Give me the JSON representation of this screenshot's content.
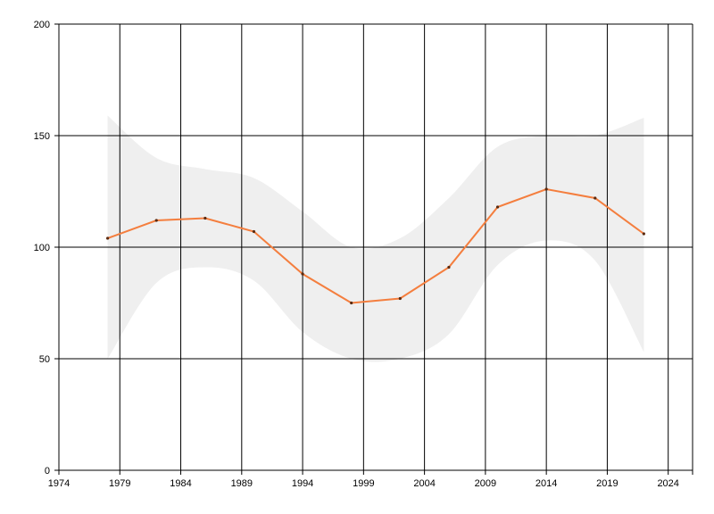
{
  "chart_data": {
    "type": "line",
    "title": "",
    "xlabel": "",
    "ylabel": "",
    "xlim": [
      1974,
      2026
    ],
    "ylim": [
      0,
      200
    ],
    "x_ticks": [
      "1974",
      "1979",
      "1984",
      "1989",
      "1994",
      "1999",
      "2004",
      "2009",
      "2014",
      "2019",
      "2024"
    ],
    "y_ticks": [
      "0",
      "50",
      "100",
      "150",
      "200"
    ],
    "grid": true,
    "series": [
      {
        "x": [
          1978,
          1982,
          1986,
          1990,
          1994,
          1998,
          2002,
          2006,
          2010,
          2014,
          2018,
          2022
        ],
        "values": [
          104,
          112,
          113,
          107,
          88,
          75,
          77,
          91,
          118,
          126,
          122,
          106
        ],
        "color": "#f47e3e"
      }
    ],
    "band": {
      "x": [
        1978,
        1982,
        1986,
        1990,
        1994,
        1998,
        2002,
        2006,
        2010,
        2014,
        2018,
        2022
      ],
      "upper": [
        159,
        140,
        135,
        131,
        116,
        100,
        104,
        122,
        145,
        150,
        150,
        158
      ],
      "lower": [
        50,
        84,
        91,
        85,
        62,
        50,
        50,
        61,
        92,
        103,
        94,
        53
      ],
      "color": "#efefef"
    }
  }
}
